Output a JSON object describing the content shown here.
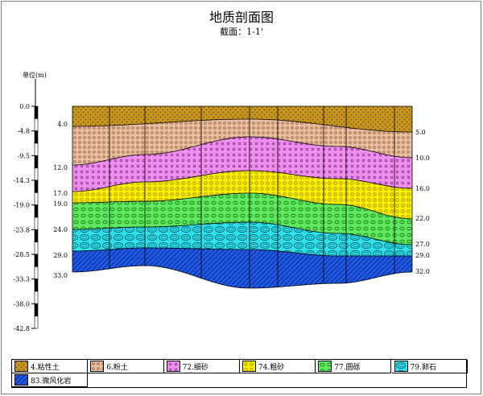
{
  "title": "地质剖面图",
  "subtitle": "截面：1-1'",
  "units_label": "单位(m)",
  "axis_ticks": [
    "0.0",
    "-4.8",
    "-9.5",
    "-14.3",
    "-19.0",
    "-23.8",
    "-28.5",
    "-33.3",
    "-38.0",
    "-42.8"
  ],
  "left_depths": [
    "4.0",
    "12.0",
    "17.0",
    "19.0",
    "24.0",
    "29.0",
    "33.0"
  ],
  "right_depths": [
    "5.0",
    "10.0",
    "16.0",
    "22.0",
    "27.0",
    "29.0",
    "32.0"
  ],
  "layers": [
    {
      "id": "4",
      "label": "4.粘性土",
      "color": "#C8961E",
      "dot": "#5a3c00"
    },
    {
      "id": "6",
      "label": "6.粉土",
      "color": "#E8C0A0",
      "dot": "#8a4a30"
    },
    {
      "id": "72",
      "label": "72.细砂",
      "color": "#F090F0",
      "dot": "#7a207a"
    },
    {
      "id": "74",
      "label": "74.粗砂",
      "color": "#F8F000",
      "dot": "#a08000"
    },
    {
      "id": "77",
      "label": "77.圆砾",
      "color": "#60E860",
      "dot": "#107010"
    },
    {
      "id": "79",
      "label": "79.卵石",
      "color": "#30E0E8",
      "dot": "#006070"
    },
    {
      "id": "83",
      "label": "83.微风化岩",
      "color": "#1E5AE6",
      "dot": "#001c70"
    }
  ]
}
